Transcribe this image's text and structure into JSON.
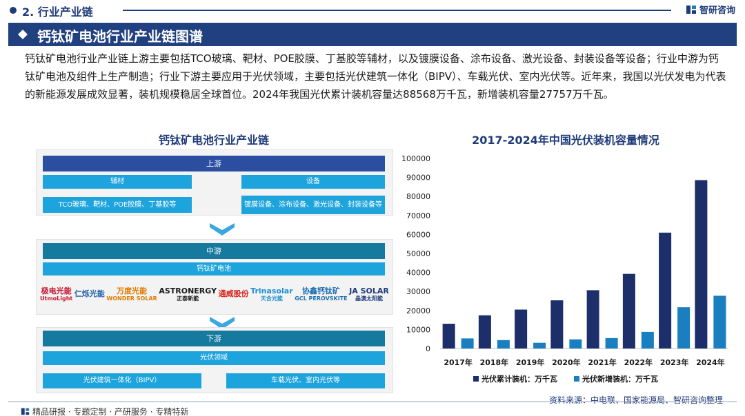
{
  "header": {
    "section_title": "2. 行业产业链",
    "brand_name": "智研咨询",
    "banner_title": "钙钛矿电池行业产业链图谱"
  },
  "intro_text": "钙钛矿电池行业产业链上游主要包括TCO玻璃、靶材、POE胶膜、丁基胶等辅材，以及镀膜设备、涂布设备、激光设备、封装设备等设备；行业中游为钙钛矿电池及组件上生产制造；行业下游主要应用于光伏领域，主要包括光伏建筑一体化（BIPV）、车载光伏、室内光伏等。近年来，我国以光伏发电为代表的新能源发展成效显著，装机规模稳居全球首位。2024年我国光伏累计装机容量达88568万千瓦，新增装机容量27757万千瓦。",
  "diagram": {
    "title": "钙钛矿电池行业产业链",
    "upstream": {
      "label": "上游",
      "materials_label": "辅材",
      "materials_detail": "TCO玻璃、靶材、POE胶膜、丁基胶等",
      "equipment_label": "设备",
      "equipment_detail": "镀膜设备、涂布设备、激光设备、封装设备等"
    },
    "midstream": {
      "label": "中游",
      "product": "钙钛矿电池",
      "logos": [
        {
          "name": "utmolight",
          "main": "极电光能",
          "sub": "UtmoLight",
          "color": "#c8102e"
        },
        {
          "name": "renshuo",
          "main": "仁烁光能",
          "sub": "",
          "color": "#1f5fa8"
        },
        {
          "name": "wonder-solar",
          "main": "万度光能",
          "sub": "WONDER SOLAR",
          "color": "#e07b00"
        },
        {
          "name": "astronergy",
          "main": "ASTRONERGY",
          "sub": "正泰新能",
          "color": "#1a1a1a"
        },
        {
          "name": "tongwei",
          "main": "通威股份",
          "sub": "",
          "color": "#d7261e"
        },
        {
          "name": "trinasolar",
          "main": "Trinasolar",
          "sub": "天合光能",
          "color": "#1a8fd1"
        },
        {
          "name": "gcl-perovskite",
          "main": "协鑫钙钛矿",
          "sub": "GCL PEROVSKITE",
          "color": "#1f6fb2"
        },
        {
          "name": "ja-solar",
          "main": "JA SOLAR",
          "sub": "晶澳太阳能",
          "color": "#1f3b7a"
        }
      ]
    },
    "downstream": {
      "label": "下游",
      "field": "光伏领域",
      "app_1": "光伏建筑一体化（BIPV）",
      "app_2": "车载光伏、室内光伏等"
    }
  },
  "chart_title": "2017-2024年中国光伏装机容量情况",
  "chart_data": {
    "type": "bar",
    "categories": [
      "2017年",
      "2018年",
      "2019年",
      "2020年",
      "2021年",
      "2022年",
      "2023年",
      "2024年"
    ],
    "series": [
      {
        "name": "光伏累计装机：万千瓦",
        "color": "#1c2f6b",
        "values": [
          13025,
          17446,
          20468,
          25343,
          30656,
          39261,
          60949,
          88568
        ]
      },
      {
        "name": "光伏新增装机：万千瓦",
        "color": "#1a7fc0",
        "values": [
          5306,
          4426,
          3011,
          4820,
          5488,
          8741,
          21688,
          27757
        ]
      }
    ],
    "ylim": [
      0,
      100000
    ],
    "yticks": [
      0,
      10000,
      20000,
      30000,
      40000,
      50000,
      60000,
      70000,
      80000,
      90000,
      100000
    ],
    "legend_position": "bottom"
  },
  "source": "资料来源：中电联、国家能源局、智研咨询整理",
  "footer": "精品研报 · 专题定制 · 产研服务 · 专精特新"
}
